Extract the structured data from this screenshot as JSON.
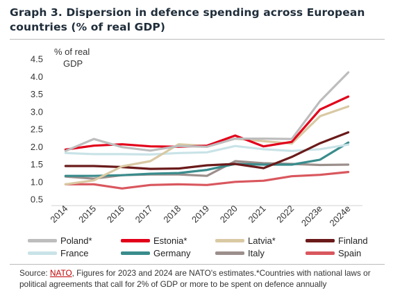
{
  "title": "Graph 3. Dispersion in defence spending across European countries (% of real GDP)",
  "source": {
    "prefix": "Source: ",
    "link": "NATO",
    "text": ", Figures for 2023 and 2024 are NATO's estimates.*Countries with national laws or political agreements that call for 2% of GDP or more to be spent on defence annually"
  },
  "chart_data": {
    "type": "line",
    "ylabel": "% of real GDP",
    "ylabel_lines": [
      "% of real",
      "GDP"
    ],
    "ylim": [
      0.5,
      4.5
    ],
    "yticks": [
      "0.5",
      "1.0",
      "1.5",
      "2.0",
      "2.5",
      "3.0",
      "3.5",
      "4.0",
      "4.5"
    ],
    "grid": false,
    "legend_position": "bottom",
    "categories": [
      "2014",
      "2015",
      "2016",
      "2017",
      "2018",
      "2019",
      "2020",
      "2021",
      "2022",
      "2023e",
      "2024e"
    ],
    "series": [
      {
        "name": "Poland*",
        "color": "#bdbdbd",
        "values": [
          1.88,
          2.22,
          1.99,
          1.89,
          2.02,
          2.0,
          2.23,
          2.23,
          2.22,
          3.3,
          4.12
        ]
      },
      {
        "name": "Estonia*",
        "color": "#e2001a",
        "values": [
          1.92,
          2.03,
          2.07,
          2.01,
          2.0,
          2.03,
          2.32,
          2.01,
          2.14,
          3.06,
          3.43
        ]
      },
      {
        "name": "Latvia*",
        "color": "#d9c9a3",
        "values": [
          0.93,
          1.04,
          1.44,
          1.59,
          2.07,
          2.02,
          2.23,
          2.16,
          2.09,
          2.87,
          3.15
        ]
      },
      {
        "name": "Finland",
        "color": "#6b1a1a",
        "values": [
          1.45,
          1.45,
          1.42,
          1.37,
          1.38,
          1.47,
          1.51,
          1.39,
          1.71,
          2.1,
          2.41
        ]
      },
      {
        "name": "France",
        "color": "#c9e3e7",
        "values": [
          1.82,
          1.79,
          1.79,
          1.78,
          1.82,
          1.84,
          2.02,
          1.93,
          1.88,
          1.93,
          2.06
        ]
      },
      {
        "name": "Germany",
        "color": "#3a8c8c",
        "values": [
          1.17,
          1.17,
          1.19,
          1.23,
          1.25,
          1.34,
          1.51,
          1.49,
          1.49,
          1.63,
          2.12
        ]
      },
      {
        "name": "Italy",
        "color": "#9b8f8c",
        "values": [
          1.15,
          1.09,
          1.19,
          1.21,
          1.21,
          1.17,
          1.59,
          1.53,
          1.51,
          1.48,
          1.49
        ]
      },
      {
        "name": "Spain",
        "color": "#d9575e",
        "values": [
          0.93,
          0.93,
          0.81,
          0.91,
          0.93,
          0.91,
          1.0,
          1.03,
          1.16,
          1.2,
          1.28
        ]
      }
    ]
  }
}
